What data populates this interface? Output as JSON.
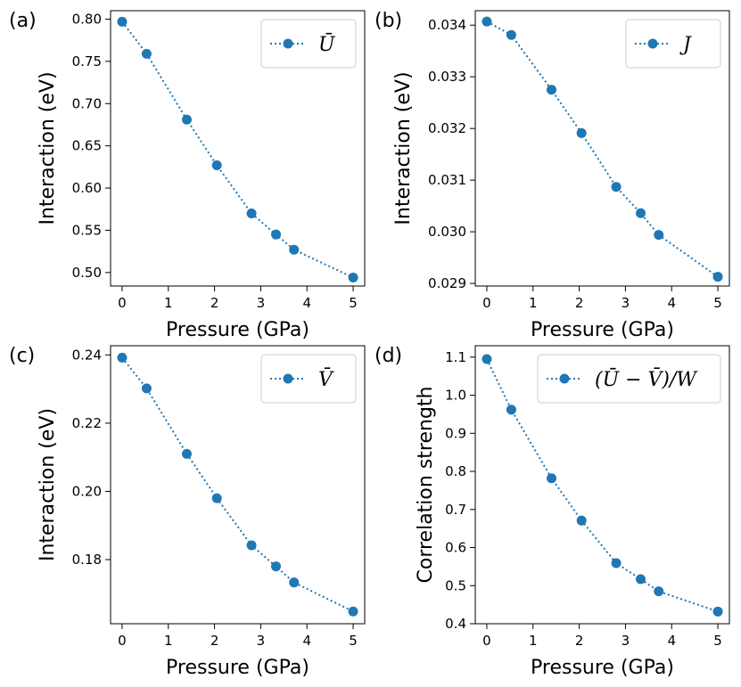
{
  "chart_data": [
    {
      "type": "line",
      "panel_label": "(a)",
      "xlabel": "Pressure (GPa)",
      "ylabel": "Interaction (eV)",
      "xlim": [
        -0.25,
        5.25
      ],
      "ylim": [
        0.484,
        0.81
      ],
      "xticks": [
        0,
        1,
        2,
        3,
        4,
        5
      ],
      "xtick_labels": [
        "0",
        "1",
        "2",
        "3",
        "4",
        "5"
      ],
      "yticks": [
        0.5,
        0.55,
        0.6,
        0.65,
        0.7,
        0.75,
        0.8
      ],
      "ytick_labels": [
        "0.50",
        "0.55",
        "0.60",
        "0.65",
        "0.70",
        "0.75",
        "0.80"
      ],
      "legend": "Ū",
      "legend_position": "top-right",
      "x": [
        0,
        0.53,
        1.4,
        2.05,
        2.8,
        3.33,
        3.72,
        5.0
      ],
      "values": [
        0.797,
        0.759,
        0.681,
        0.627,
        0.57,
        0.545,
        0.527,
        0.494
      ]
    },
    {
      "type": "line",
      "panel_label": "(b)",
      "xlabel": "Pressure (GPa)",
      "ylabel": "Interaction (eV)",
      "xlim": [
        -0.25,
        5.25
      ],
      "ylim": [
        0.02895,
        0.03428
      ],
      "xticks": [
        0,
        1,
        2,
        3,
        4,
        5
      ],
      "xtick_labels": [
        "0",
        "1",
        "2",
        "3",
        "4",
        "5"
      ],
      "yticks": [
        0.029,
        0.03,
        0.031,
        0.032,
        0.033,
        0.034
      ],
      "ytick_labels": [
        "0.029",
        "0.030",
        "0.031",
        "0.032",
        "0.033",
        "0.034"
      ],
      "legend": "J",
      "legend_position": "top-right",
      "x": [
        0,
        0.53,
        1.4,
        2.05,
        2.8,
        3.33,
        3.72,
        5.0
      ],
      "values": [
        0.03407,
        0.03381,
        0.03275,
        0.03191,
        0.03087,
        0.03036,
        0.02994,
        0.02913
      ]
    },
    {
      "type": "line",
      "panel_label": "(c)",
      "xlabel": "Pressure (GPa)",
      "ylabel": "Interaction (eV)",
      "xlim": [
        -0.25,
        5.25
      ],
      "ylim": [
        0.1612,
        0.2427
      ],
      "xticks": [
        0,
        1,
        2,
        3,
        4,
        5
      ],
      "xtick_labels": [
        "0",
        "1",
        "2",
        "3",
        "4",
        "5"
      ],
      "yticks": [
        0.18,
        0.2,
        0.22,
        0.24
      ],
      "ytick_labels": [
        "0.18",
        "0.20",
        "0.22",
        "0.24"
      ],
      "legend": "V̄",
      "legend_position": "top-right",
      "x": [
        0,
        0.53,
        1.4,
        2.05,
        2.8,
        3.33,
        3.72,
        5.0
      ],
      "values": [
        0.2392,
        0.2302,
        0.211,
        0.198,
        0.1842,
        0.178,
        0.1733,
        0.1648
      ]
    },
    {
      "type": "line",
      "panel_label": "(d)",
      "xlabel": "Pressure (GPa)",
      "ylabel": "Correlation strength",
      "xlim": [
        -0.25,
        5.25
      ],
      "ylim": [
        0.4,
        1.13
      ],
      "xticks": [
        0,
        1,
        2,
        3,
        4,
        5
      ],
      "xtick_labels": [
        "0",
        "1",
        "2",
        "3",
        "4",
        "5"
      ],
      "yticks": [
        0.4,
        0.5,
        0.6,
        0.7,
        0.8,
        0.9,
        1.0,
        1.1
      ],
      "ytick_labels": [
        "0.4",
        "0.5",
        "0.6",
        "0.7",
        "0.8",
        "0.9",
        "1.0",
        "1.1"
      ],
      "legend": "(Ū − V̄)/W",
      "legend_position": "top-right",
      "x": [
        0,
        0.53,
        1.4,
        2.05,
        2.8,
        3.33,
        3.72,
        5.0
      ],
      "values": [
        1.095,
        0.962,
        0.782,
        0.671,
        0.559,
        0.517,
        0.485,
        0.432
      ]
    }
  ],
  "colors": {
    "series": "#1f77b4",
    "axis": "#000000",
    "legend_border": "#cccccc"
  }
}
